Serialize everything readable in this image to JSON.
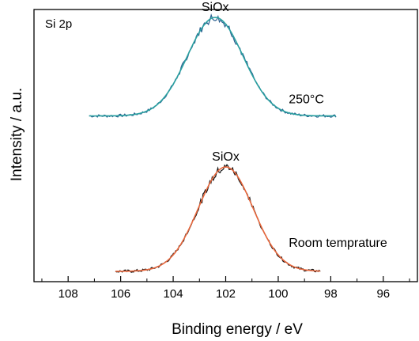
{
  "chart_data": {
    "type": "line",
    "title": "",
    "xlabel": "Binding energy / eV",
    "ylabel": "Intensity / a.u.",
    "xlim": [
      109.3,
      94.7
    ],
    "x_reversed": true,
    "xticks": [
      108,
      106,
      104,
      102,
      100,
      98,
      96
    ],
    "xtick_labels": [
      "108",
      "106",
      "104",
      "102",
      "100",
      "98",
      "96"
    ],
    "y_ticks_shown": false,
    "grid": false,
    "panel_label": "Si 2p",
    "annotations": [
      {
        "text": "SiOx",
        "x": 102.4,
        "series": "250°C"
      },
      {
        "text": "250°C",
        "x": 99.6,
        "series": "250°C"
      },
      {
        "text": "SiOx",
        "x": 102.0,
        "series": "Room temprature"
      },
      {
        "text": "Room temprature",
        "x": 99.6,
        "series": "Room temprature"
      }
    ],
    "series": [
      {
        "name": "250°C",
        "x_range": [
          107.2,
          97.8
        ],
        "peak_center": 102.4,
        "fwhm": 2.5,
        "relative_offset": 0.655,
        "relative_height": 0.415,
        "data_color": "#2a5f8f",
        "fit_color": "#2aa0a0"
      },
      {
        "name": "Room temprature",
        "x_range": [
          106.2,
          98.4
        ],
        "peak_center": 102.0,
        "fwhm": 2.45,
        "relative_offset": 0.0,
        "relative_height": 0.44,
        "data_color": "#111111",
        "fit_color": "#e8673c"
      }
    ]
  }
}
